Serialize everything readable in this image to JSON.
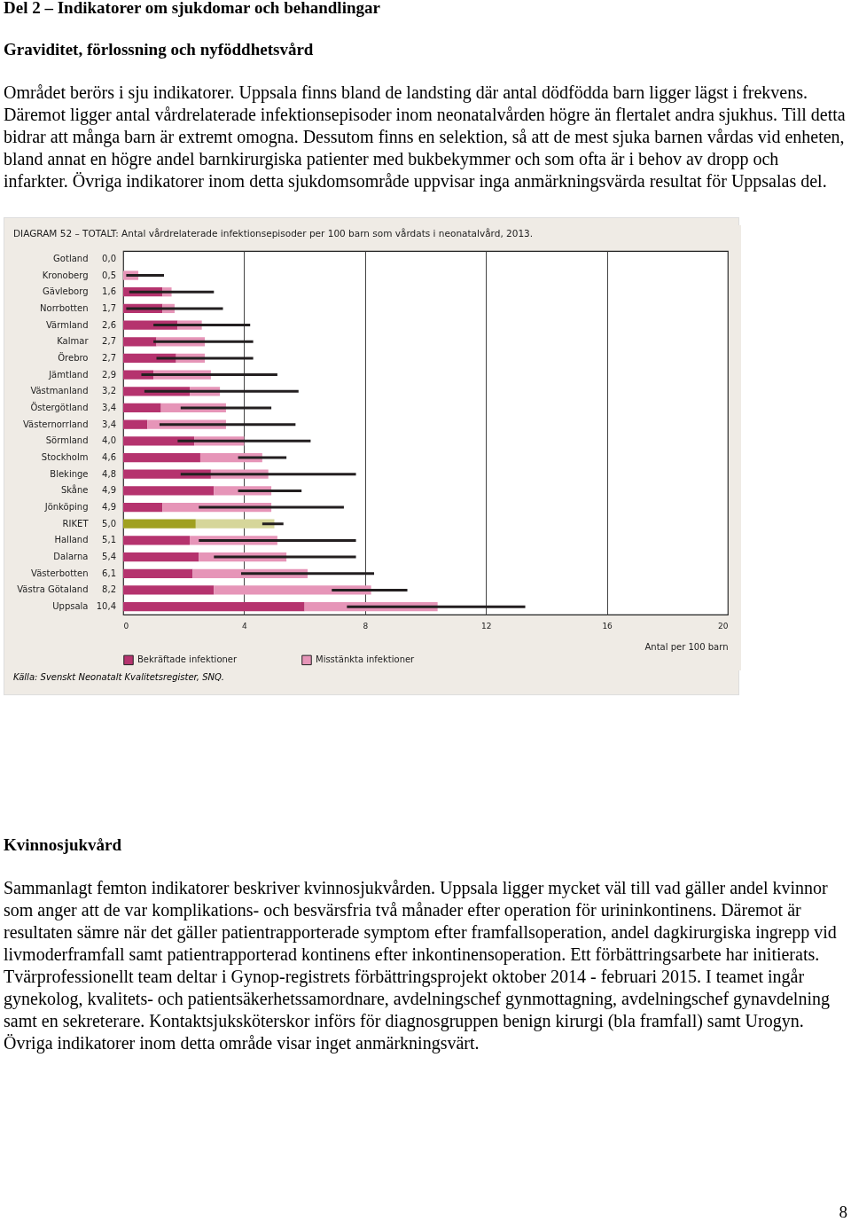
{
  "chart_data": {
    "type": "bar",
    "orientation": "horizontal",
    "stacked": true,
    "title": "DIAGRAM 52 – TOTALT: Antal vårdrelaterade infektionsepisoder per 100 barn som vårdats i neonatalvård, 2013.",
    "xlabel": "Antal per 100 barn",
    "categories": [
      "Gotland",
      "Kronoberg",
      "Gävleborg",
      "Norrbotten",
      "Värmland",
      "Kalmar",
      "Örebro",
      "Jämtland",
      "Västmanland",
      "Östergötland",
      "Västernorrland",
      "Sörmland",
      "Stockholm",
      "Blekinge",
      "Skåne",
      "Jönköping",
      "RIKET",
      "Halland",
      "Dalarna",
      "Västerbotten",
      "Västra Götaland",
      "Uppsala"
    ],
    "series": [
      {
        "name": "Bekräftade infektioner",
        "color": "#b5336e",
        "colors": [
          "#b5336e",
          "#b5336e",
          "#b5336e",
          "#b5336e",
          "#b5336e",
          "#b5336e",
          "#b5336e",
          "#b5336e",
          "#b5336e",
          "#b5336e",
          "#b5336e",
          "#b5336e",
          "#b5336e",
          "#b5336e",
          "#b5336e",
          "#b5336e",
          "#a0a020",
          "#b5336e",
          "#b5336e",
          "#b5336e",
          "#b5336e",
          "#b5336e"
        ],
        "values": [
          0,
          0,
          1.3,
          1.3,
          1.8,
          1.1,
          1.75,
          1.0,
          2.2,
          1.25,
          0.8,
          2.35,
          2.55,
          2.9,
          3.0,
          1.3,
          2.4,
          2.2,
          2.5,
          2.3,
          3.0,
          6.0
        ]
      },
      {
        "name": "Misstänkta infektioner",
        "color": "#e695b8",
        "colors": [
          "#e695b8",
          "#e695b8",
          "#e695b8",
          "#e695b8",
          "#e695b8",
          "#e695b8",
          "#e695b8",
          "#e695b8",
          "#e695b8",
          "#e695b8",
          "#e695b8",
          "#e695b8",
          "#e695b8",
          "#e695b8",
          "#e695b8",
          "#e695b8",
          "#d6d69a",
          "#e695b8",
          "#e695b8",
          "#e695b8",
          "#e695b8",
          "#e695b8"
        ],
        "values": [
          0,
          0.5,
          0.3,
          0.4,
          0.8,
          1.6,
          0.95,
          1.9,
          1.0,
          2.15,
          2.6,
          1.65,
          2.05,
          1.9,
          1.9,
          3.6,
          2.6,
          2.9,
          2.9,
          3.8,
          5.2,
          4.4
        ],
        "errors": [
          null,
          [
            0.1,
            1.35
          ],
          [
            0.2,
            3.0
          ],
          [
            0.1,
            3.3
          ],
          [
            1.0,
            4.2
          ],
          [
            1.0,
            4.3
          ],
          [
            1.1,
            4.3
          ],
          [
            0.6,
            5.1
          ],
          [
            0.7,
            5.8
          ],
          [
            1.9,
            4.9
          ],
          [
            1.2,
            5.7
          ],
          [
            1.8,
            6.2
          ],
          [
            3.8,
            5.4
          ],
          [
            1.9,
            7.7
          ],
          [
            3.8,
            5.9
          ],
          [
            2.5,
            7.3
          ],
          [
            4.6,
            5.3
          ],
          [
            2.5,
            7.7
          ],
          [
            3.0,
            7.7
          ],
          [
            3.9,
            8.3
          ],
          [
            6.9,
            9.4
          ],
          [
            7.4,
            13.3
          ]
        ]
      }
    ],
    "totals": [
      "0,0",
      "0,5",
      "1,6",
      "1,7",
      "2,6",
      "2,7",
      "2,7",
      "2,9",
      "3,2",
      "3,4",
      "3,4",
      "4,0",
      "4,6",
      "4,8",
      "4,9",
      "4,9",
      "5,0",
      "5,1",
      "5,4",
      "6,1",
      "8,2",
      "10,4"
    ],
    "xlim": [
      0,
      20
    ],
    "xticks": [
      0,
      4,
      8,
      12,
      16,
      20
    ],
    "grid": "x",
    "legend": "bottom",
    "annotations": [
      "Del 2 – Indikatorer om sjukdomar och behandlingar",
      "Graviditet, förlossning och nyföddhetsvård",
      "Området berörs i sju indikatorer. Uppsala finns bland de landsting där antal dödfödda barn ligger lägst i frekvens. Däremot ligger antal vårdrelaterade infektionsepisoder inom neonatalvården högre än flertalet andra sjukhus. Till detta bidrar att många barn är extremt omogna. Dessutom finns en selektion, så att de mest sjuka barnen vårdas vid enheten, bland annat en högre andel barnkirurgiska patienter med bukbekymmer och som ofta är i behov av dropp och infarkter. Övriga indikatorer inom detta sjukdomsområde uppvisar inga anmärkningsvärda resultat för Uppsalas del.",
      "Källa: Svenskt Neonatalt Kvalitetsregister, SNQ.",
      "Kvinnosjukvård",
      "Sammanlagt femton indikatorer beskriver kvinnosjukvården. Uppsala ligger mycket väl till vad gäller andel kvinnor som anger att de var komplikations- och besvärsfria två månader efter operation för urininkontinens. Däremot är resultaten sämre när det gäller patientrapporterade symptom efter framfallsoperation, andel dagkirurgiska ingrepp vid livmoderframfall samt patientrapporterad kontinens efter inkontinensoperation. Ett förbättringsarbete har initierats. Tvärprofessionellt team deltar i Gynop-registrets förbättringsprojekt oktober 2014 - februari 2015. I teamet ingår gynekolog, kvalitets- och patientsäkerhetssamordnare, avdelningschef gynmottagning, avdelningschef gynavdelning samt en sekreterare. Kontaktsjuksköterskor införs för diagnosgruppen benign kirurgi (bla framfall) samt Urogyn. Övriga indikatorer inom detta område visar inget anmärkningsvärt.",
      "8"
    ]
  }
}
